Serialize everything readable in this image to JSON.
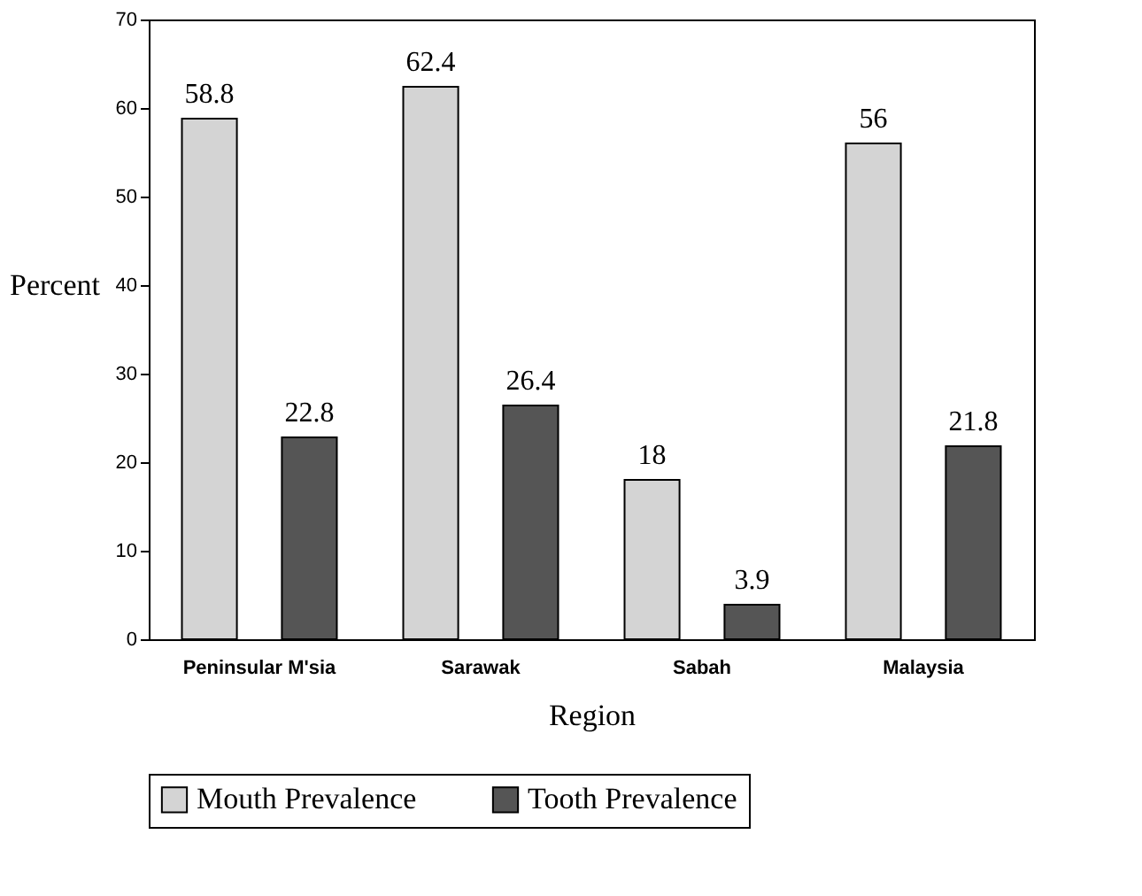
{
  "chart_data": {
    "type": "bar",
    "xlabel": "Region",
    "ylabel": "Percent",
    "categories": [
      "Peninsular M'sia",
      "Sarawak",
      "Sabah",
      "Malaysia"
    ],
    "series": [
      {
        "name": "Mouth Prevalence",
        "color": "#d4d4d4",
        "values": [
          58.8,
          62.4,
          18,
          56
        ]
      },
      {
        "name": "Tooth Prevalence",
        "color": "#555555",
        "values": [
          22.8,
          26.4,
          3.9,
          21.8
        ]
      }
    ],
    "ylim": [
      0,
      70
    ],
    "yticks": [
      0,
      10,
      20,
      30,
      40,
      50,
      60,
      70
    ],
    "grid": false,
    "legend": "bottom",
    "data_labels": true
  }
}
